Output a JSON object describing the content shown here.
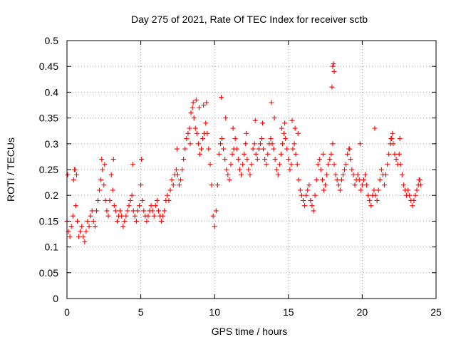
{
  "chart_data": {
    "type": "scatter",
    "title": "Day 275 of 2021, Rate Of TEC Index for receiver sctb",
    "xlabel": "GPS time / hours",
    "ylabel": "ROTI / TECUs",
    "xlim": [
      0,
      25
    ],
    "ylim": [
      0,
      0.5
    ],
    "x_ticks": [
      "0",
      "5",
      "10",
      "15",
      "20",
      "25"
    ],
    "y_ticks": [
      "0",
      "0.05",
      "0.1",
      "0.15",
      "0.2",
      "0.25",
      "0.3",
      "0.35",
      "0.4",
      "0.45",
      "0.5"
    ],
    "grid": true,
    "marker": "+",
    "series": [
      {
        "color": "#ff0000",
        "x": [
          0.0,
          0.1,
          0.2,
          0.3,
          0.4,
          0.5,
          0.6,
          0.7,
          0.8,
          0.9,
          1.0,
          1.1,
          1.2,
          1.3,
          1.4,
          1.5,
          1.6,
          1.7,
          1.8,
          1.9,
          2.0,
          2.1,
          2.2,
          2.3,
          2.4,
          2.5,
          2.6,
          2.7,
          2.8,
          2.9,
          3.0,
          3.1,
          3.2,
          3.3,
          3.4,
          3.5,
          3.6,
          3.7,
          3.8,
          3.9,
          4.0,
          4.1,
          4.2,
          4.3,
          4.4,
          4.5,
          4.6,
          4.7,
          4.8,
          4.9,
          5.0,
          5.1,
          5.2,
          5.3,
          5.4,
          5.5,
          5.6,
          5.7,
          5.8,
          5.9,
          6.0,
          6.1,
          6.2,
          6.3,
          6.4,
          6.5,
          6.6,
          6.7,
          6.8,
          6.9,
          7.0,
          7.1,
          7.2,
          7.3,
          7.4,
          7.5,
          7.6,
          7.7,
          7.8,
          7.9,
          8.0,
          8.1,
          8.2,
          8.3,
          8.4,
          8.5,
          8.6,
          8.7,
          8.8,
          8.9,
          9.0,
          9.1,
          9.2,
          9.3,
          9.4,
          9.5,
          9.6,
          9.7,
          9.8,
          9.9,
          10.0,
          10.1,
          10.2,
          10.3,
          10.4,
          10.5,
          10.6,
          10.7,
          10.8,
          10.9,
          11.0,
          11.1,
          11.2,
          11.3,
          11.4,
          11.5,
          11.6,
          11.7,
          11.8,
          11.9,
          12.0,
          12.1,
          12.2,
          12.3,
          12.4,
          12.5,
          12.6,
          12.7,
          12.8,
          12.9,
          13.0,
          13.1,
          13.2,
          13.3,
          13.4,
          13.5,
          13.6,
          13.7,
          13.8,
          13.9,
          14.0,
          14.1,
          14.2,
          14.3,
          14.4,
          14.5,
          14.6,
          14.7,
          14.8,
          14.9,
          15.0,
          15.1,
          15.2,
          15.3,
          15.4,
          15.5,
          15.6,
          15.7,
          15.8,
          15.9,
          16.0,
          16.1,
          16.2,
          16.3,
          16.4,
          16.5,
          16.6,
          16.7,
          16.8,
          16.9,
          17.0,
          17.1,
          17.2,
          17.3,
          17.4,
          17.5,
          17.6,
          17.7,
          17.8,
          17.9,
          18.0,
          18.1,
          18.2,
          18.3,
          18.4,
          18.5,
          18.6,
          18.7,
          18.8,
          18.9,
          19.0,
          19.1,
          19.2,
          19.3,
          19.4,
          19.5,
          19.6,
          19.7,
          19.8,
          19.9,
          20.0,
          20.1,
          20.2,
          20.3,
          20.4,
          20.5,
          20.6,
          20.7,
          20.8,
          20.9,
          21.0,
          21.1,
          21.2,
          21.3,
          21.4,
          21.5,
          21.6,
          21.7,
          21.8,
          21.9,
          22.0,
          22.1,
          22.2,
          22.3,
          22.4,
          22.5,
          22.6,
          22.7,
          22.8,
          22.9,
          23.0,
          23.1,
          23.2,
          23.3,
          23.4,
          23.5,
          23.6,
          23.7,
          23.8,
          23.9,
          0.05,
          0.45,
          0.55,
          0.65,
          2.35,
          2.55,
          3.15,
          4.45,
          5.05,
          7.45,
          8.35,
          8.55,
          8.75,
          8.95,
          9.25,
          9.45,
          10.45,
          10.75,
          11.25,
          12.15,
          12.75,
          13.25,
          13.85,
          14.05,
          14.55,
          14.75,
          15.25,
          15.45,
          15.65,
          17.35,
          17.95,
          18.0,
          18.05,
          18.1,
          19.15,
          19.85,
          20.85,
          21.95,
          22.05,
          22.55,
          23.85,
          23.95
        ],
        "y": [
          0.15,
          0.13,
          0.12,
          0.14,
          0.16,
          0.25,
          0.18,
          0.15,
          0.12,
          0.13,
          0.14,
          0.12,
          0.11,
          0.13,
          0.15,
          0.14,
          0.16,
          0.17,
          0.15,
          0.14,
          0.17,
          0.19,
          0.21,
          0.23,
          0.25,
          0.22,
          0.19,
          0.17,
          0.16,
          0.19,
          0.24,
          0.21,
          0.18,
          0.17,
          0.15,
          0.16,
          0.17,
          0.16,
          0.14,
          0.15,
          0.16,
          0.17,
          0.18,
          0.19,
          0.2,
          0.17,
          0.16,
          0.15,
          0.17,
          0.18,
          0.22,
          0.19,
          0.17,
          0.16,
          0.15,
          0.16,
          0.17,
          0.18,
          0.17,
          0.16,
          0.18,
          0.19,
          0.17,
          0.16,
          0.15,
          0.16,
          0.17,
          0.19,
          0.2,
          0.19,
          0.21,
          0.23,
          0.22,
          0.24,
          0.25,
          0.24,
          0.22,
          0.23,
          0.25,
          0.27,
          0.29,
          0.31,
          0.32,
          0.33,
          0.36,
          0.37,
          0.35,
          0.33,
          0.32,
          0.3,
          0.28,
          0.29,
          0.31,
          0.32,
          0.34,
          0.32,
          0.29,
          0.26,
          0.22,
          0.16,
          0.14,
          0.17,
          0.22,
          0.28,
          0.3,
          0.31,
          0.29,
          0.27,
          0.25,
          0.24,
          0.23,
          0.26,
          0.28,
          0.29,
          0.31,
          0.29,
          0.27,
          0.25,
          0.24,
          0.26,
          0.28,
          0.3,
          0.27,
          0.25,
          0.24,
          0.26,
          0.29,
          0.3,
          0.28,
          0.27,
          0.29,
          0.3,
          0.31,
          0.29,
          0.27,
          0.26,
          0.28,
          0.3,
          0.31,
          0.3,
          0.29,
          0.27,
          0.25,
          0.24,
          0.26,
          0.28,
          0.3,
          0.32,
          0.31,
          0.29,
          0.27,
          0.25,
          0.26,
          0.29,
          0.3,
          0.28,
          0.26,
          0.23,
          0.21,
          0.2,
          0.19,
          0.18,
          0.2,
          0.21,
          0.22,
          0.19,
          0.18,
          0.17,
          0.2,
          0.23,
          0.26,
          0.27,
          0.25,
          0.23,
          0.21,
          0.22,
          0.24,
          0.26,
          0.27,
          0.28,
          0.3,
          0.26,
          0.24,
          0.23,
          0.22,
          0.21,
          0.23,
          0.24,
          0.25,
          0.26,
          0.28,
          0.29,
          0.27,
          0.25,
          0.24,
          0.22,
          0.23,
          0.24,
          0.23,
          0.21,
          0.22,
          0.23,
          0.24,
          0.22,
          0.2,
          0.19,
          0.18,
          0.2,
          0.21,
          0.2,
          0.19,
          0.21,
          0.23,
          0.25,
          0.24,
          0.22,
          0.24,
          0.26,
          0.28,
          0.3,
          0.31,
          0.3,
          0.28,
          0.27,
          0.26,
          0.28,
          0.26,
          0.24,
          0.22,
          0.21,
          0.2,
          0.21,
          0.2,
          0.19,
          0.18,
          0.19,
          0.2,
          0.21,
          0.22,
          0.23,
          0.24,
          0.23,
          0.25,
          0.24,
          0.27,
          0.26,
          0.27,
          0.26,
          0.27,
          0.29,
          0.3,
          0.38,
          0.385,
          0.37,
          0.375,
          0.38,
          0.39,
          0.35,
          0.33,
          0.32,
          0.345,
          0.34,
          0.38,
          0.35,
          0.33,
          0.34,
          0.345,
          0.33,
          0.32,
          0.28,
          0.41,
          0.45,
          0.455,
          0.44,
          0.29,
          0.3,
          0.33,
          0.31,
          0.32,
          0.31,
          0.23,
          0.22
        ]
      }
    ]
  }
}
